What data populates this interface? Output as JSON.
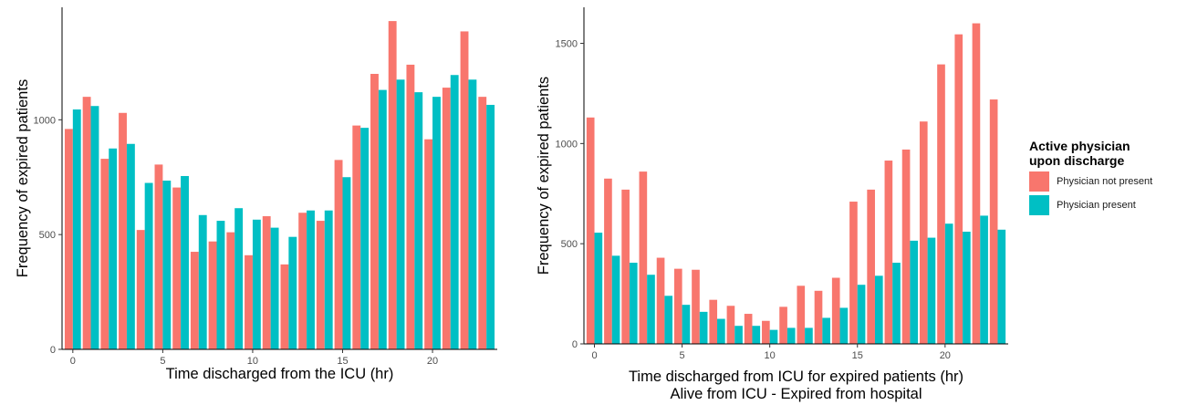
{
  "colors": {
    "not_present": "#F8766D",
    "present": "#00BFC4"
  },
  "legend": {
    "title_line1": "Active physician",
    "title_line2": "upon discharge",
    "items": [
      {
        "label": "Physician not present",
        "color": "#F8766D"
      },
      {
        "label": "Physician present",
        "color": "#00BFC4"
      }
    ]
  },
  "chart_data": [
    {
      "type": "bar",
      "xlabel": "Time discharged from the ICU (hr)",
      "subtitle": "",
      "ylabel": "Frequency of expired patients",
      "x": [
        0,
        1,
        2,
        3,
        4,
        5,
        6,
        7,
        8,
        9,
        10,
        11,
        12,
        13,
        14,
        15,
        16,
        17,
        18,
        19,
        20,
        21,
        22,
        23
      ],
      "xticks": [
        0,
        5,
        10,
        15,
        20
      ],
      "yticks": [
        0,
        500,
        1000
      ],
      "ylim": [
        0,
        1490
      ],
      "xlim": [
        -0.6,
        23.6
      ],
      "series": [
        {
          "name": "Physician not present",
          "values": [
            960,
            1100,
            830,
            1030,
            520,
            805,
            705,
            425,
            470,
            510,
            410,
            580,
            370,
            595,
            560,
            825,
            975,
            1200,
            1430,
            1240,
            915,
            1140,
            1385,
            1100
          ]
        },
        {
          "name": "Physician present",
          "values": [
            1045,
            1060,
            875,
            895,
            725,
            735,
            755,
            585,
            560,
            615,
            565,
            530,
            490,
            605,
            605,
            750,
            965,
            1130,
            1175,
            1120,
            1100,
            1195,
            1175,
            1065
          ]
        }
      ],
      "grid": false,
      "legend": "none"
    },
    {
      "type": "bar",
      "xlabel": "Time discharged from ICU for expired patients (hr)",
      "subtitle": "Alive from ICU - Expired from hospital",
      "ylabel": "Frequency of expired patients",
      "x": [
        0,
        1,
        2,
        3,
        4,
        5,
        6,
        7,
        8,
        9,
        10,
        11,
        12,
        13,
        14,
        15,
        16,
        17,
        18,
        19,
        20,
        21,
        22,
        23
      ],
      "xticks": [
        0,
        5,
        10,
        15,
        20
      ],
      "yticks": [
        0,
        500,
        1000,
        1500
      ],
      "ylim": [
        0,
        1680
      ],
      "xlim": [
        -0.6,
        23.6
      ],
      "series": [
        {
          "name": "Physician not present",
          "values": [
            1130,
            825,
            770,
            860,
            430,
            375,
            370,
            220,
            190,
            150,
            115,
            185,
            290,
            265,
            330,
            710,
            770,
            915,
            970,
            1110,
            1395,
            1545,
            1600,
            1220
          ]
        },
        {
          "name": "Physician present",
          "values": [
            555,
            440,
            405,
            345,
            240,
            195,
            160,
            125,
            90,
            90,
            70,
            80,
            80,
            130,
            180,
            295,
            340,
            405,
            515,
            530,
            600,
            560,
            640,
            570
          ]
        }
      ],
      "grid": false,
      "legend": "right"
    }
  ]
}
